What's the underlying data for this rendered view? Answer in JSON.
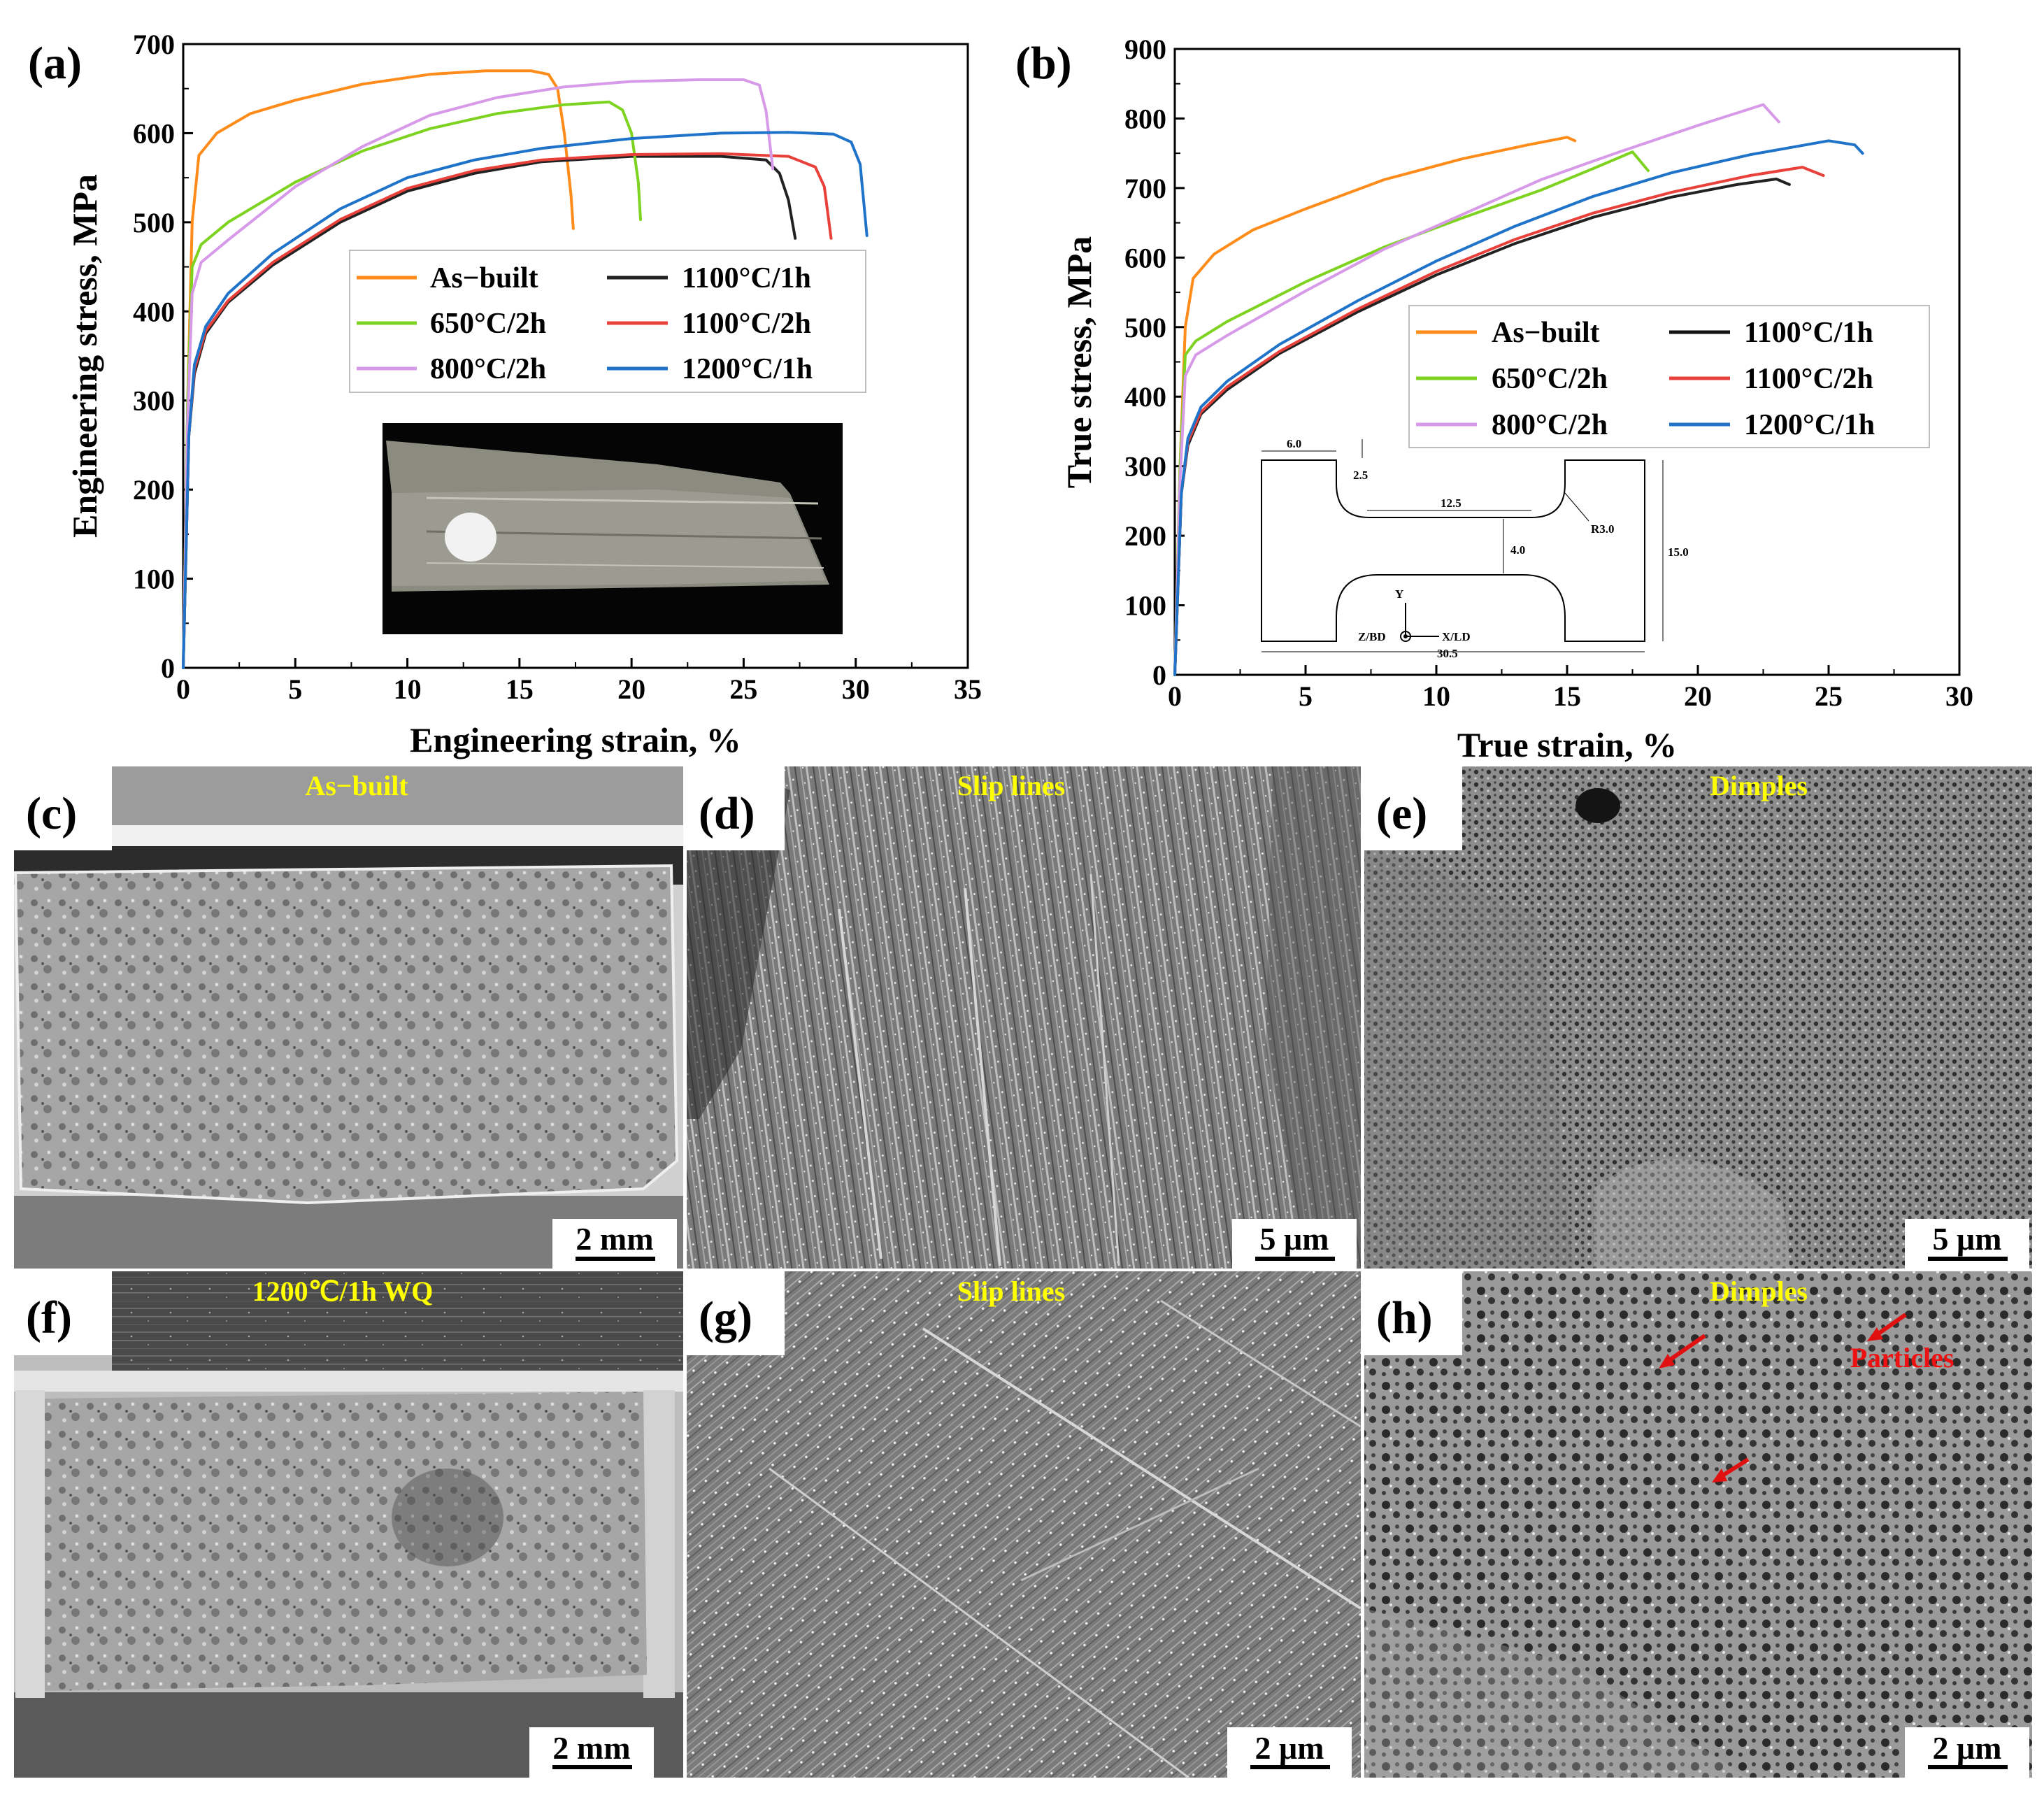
{
  "colors": {
    "as_built": "#ff8c1a",
    "c650_2h": "#7ed321",
    "c800_2h": "#d79ae8",
    "c1100_1h": "#222222",
    "c1100_2h": "#e8413b",
    "c1200_1h": "#1f73c8",
    "annotation_yellow": "#ffff00",
    "arrow_red": "#e11111"
  },
  "chart_data": [
    {
      "panel": "(a)",
      "type": "line",
      "xlabel": "Engineering strain, %",
      "ylabel": "Engineering stress, MPa",
      "xlim": [
        0,
        35
      ],
      "ylim": [
        0,
        700
      ],
      "xticks": [
        0,
        5,
        10,
        15,
        20,
        25,
        30,
        35
      ],
      "yticks": [
        0,
        100,
        200,
        300,
        400,
        500,
        600,
        700
      ],
      "legend": "center-right",
      "series": [
        {
          "name": "As−built",
          "color_key": "as_built",
          "points": [
            [
              0,
              0
            ],
            [
              0.2,
              300
            ],
            [
              0.4,
              500
            ],
            [
              0.7,
              575
            ],
            [
              1.5,
              600
            ],
            [
              3,
              622
            ],
            [
              5,
              637
            ],
            [
              8,
              655
            ],
            [
              11,
              666
            ],
            [
              13.5,
              670
            ],
            [
              15.5,
              670
            ],
            [
              16.3,
              666
            ],
            [
              16.7,
              650
            ],
            [
              17,
              600
            ],
            [
              17.3,
              530
            ],
            [
              17.4,
              493
            ]
          ]
        },
        {
          "name": "1100°C/1h",
          "color_key": "c1100_1h",
          "points": [
            [
              0,
              0
            ],
            [
              0.25,
              260
            ],
            [
              0.5,
              330
            ],
            [
              1,
              375
            ],
            [
              2,
              410
            ],
            [
              4,
              452
            ],
            [
              7,
              500
            ],
            [
              10,
              535
            ],
            [
              13,
              555
            ],
            [
              16,
              568
            ],
            [
              20,
              574
            ],
            [
              24,
              574
            ],
            [
              26,
              570
            ],
            [
              26.6,
              555
            ],
            [
              27,
              525
            ],
            [
              27.3,
              482
            ]
          ]
        },
        {
          "name": "650°C/2h",
          "color_key": "c650_2h",
          "points": [
            [
              0,
              0
            ],
            [
              0.2,
              300
            ],
            [
              0.4,
              450
            ],
            [
              0.8,
              475
            ],
            [
              2,
              500
            ],
            [
              5,
              545
            ],
            [
              8,
              580
            ],
            [
              11,
              605
            ],
            [
              14,
              622
            ],
            [
              17,
              632
            ],
            [
              19,
              635
            ],
            [
              19.6,
              626
            ],
            [
              20,
              600
            ],
            [
              20.3,
              545
            ],
            [
              20.4,
              503
            ]
          ]
        },
        {
          "name": "1100°C/2h",
          "color_key": "c1100_2h",
          "points": [
            [
              0,
              0
            ],
            [
              0.25,
              260
            ],
            [
              0.5,
              335
            ],
            [
              1,
              378
            ],
            [
              2,
              412
            ],
            [
              4,
              455
            ],
            [
              7,
              503
            ],
            [
              10,
              538
            ],
            [
              13,
              558
            ],
            [
              16,
              570
            ],
            [
              20,
              576
            ],
            [
              24,
              577
            ],
            [
              27,
              574
            ],
            [
              28.2,
              562
            ],
            [
              28.6,
              540
            ],
            [
              28.9,
              482
            ]
          ]
        },
        {
          "name": "800°C/2h",
          "color_key": "c800_2h",
          "points": [
            [
              0,
              0
            ],
            [
              0.2,
              280
            ],
            [
              0.4,
              420
            ],
            [
              0.8,
              455
            ],
            [
              2,
              480
            ],
            [
              5,
              540
            ],
            [
              8,
              585
            ],
            [
              11,
              620
            ],
            [
              14,
              640
            ],
            [
              17,
              652
            ],
            [
              20,
              658
            ],
            [
              23,
              660
            ],
            [
              25,
              660
            ],
            [
              25.7,
              654
            ],
            [
              26,
              625
            ],
            [
              26.3,
              560
            ]
          ]
        },
        {
          "name": "1200°C/1h",
          "color_key": "c1200_1h",
          "points": [
            [
              0,
              0
            ],
            [
              0.25,
              260
            ],
            [
              0.5,
              340
            ],
            [
              1,
              383
            ],
            [
              2,
              420
            ],
            [
              4,
              465
            ],
            [
              7,
              515
            ],
            [
              10,
              550
            ],
            [
              13,
              570
            ],
            [
              16,
              583
            ],
            [
              20,
              594
            ],
            [
              24,
              600
            ],
            [
              27,
              601
            ],
            [
              29,
              599
            ],
            [
              29.8,
              590
            ],
            [
              30.2,
              565
            ],
            [
              30.5,
              485
            ]
          ]
        }
      ]
    },
    {
      "panel": "(b)",
      "type": "line",
      "xlabel": "True strain, %",
      "ylabel": "True stress, MPa",
      "xlim": [
        0,
        30
      ],
      "ylim": [
        0,
        900
      ],
      "xticks": [
        0,
        5,
        10,
        15,
        20,
        25,
        30
      ],
      "yticks": [
        0,
        100,
        200,
        300,
        400,
        500,
        600,
        700,
        800,
        900
      ],
      "legend": "center-right",
      "series": [
        {
          "name": "As−built",
          "color_key": "as_built",
          "points": [
            [
              0,
              0
            ],
            [
              0.2,
              300
            ],
            [
              0.4,
              500
            ],
            [
              0.7,
              570
            ],
            [
              1.5,
              605
            ],
            [
              3,
              640
            ],
            [
              5,
              670
            ],
            [
              8,
              712
            ],
            [
              11,
              742
            ],
            [
              13.5,
              762
            ],
            [
              15,
              773
            ],
            [
              15.3,
              768
            ]
          ]
        },
        {
          "name": "1100°C/1h",
          "color_key": "c1100_1h",
          "points": [
            [
              0,
              0
            ],
            [
              0.25,
              260
            ],
            [
              0.5,
              330
            ],
            [
              1,
              375
            ],
            [
              2,
              410
            ],
            [
              4,
              462
            ],
            [
              7,
              522
            ],
            [
              10,
              575
            ],
            [
              13,
              620
            ],
            [
              16,
              658
            ],
            [
              19,
              687
            ],
            [
              21.5,
              705
            ],
            [
              23,
              713
            ],
            [
              23.5,
              705
            ]
          ]
        },
        {
          "name": "650°C/2h",
          "color_key": "c650_2h",
          "points": [
            [
              0,
              0
            ],
            [
              0.2,
              300
            ],
            [
              0.4,
              460
            ],
            [
              0.8,
              480
            ],
            [
              2,
              508
            ],
            [
              5,
              565
            ],
            [
              8,
              615
            ],
            [
              11,
              657
            ],
            [
              14,
              697
            ],
            [
              16,
              728
            ],
            [
              17.5,
              752
            ],
            [
              18.1,
              725
            ]
          ]
        },
        {
          "name": "1100°C/2h",
          "color_key": "c1100_2h",
          "points": [
            [
              0,
              0
            ],
            [
              0.25,
              260
            ],
            [
              0.5,
              335
            ],
            [
              1,
              378
            ],
            [
              2,
              414
            ],
            [
              4,
              465
            ],
            [
              7,
              526
            ],
            [
              10,
              580
            ],
            [
              13,
              626
            ],
            [
              16,
              664
            ],
            [
              19,
              694
            ],
            [
              22,
              718
            ],
            [
              24,
              730
            ],
            [
              24.8,
              718
            ]
          ]
        },
        {
          "name": "800°C/2h",
          "color_key": "c800_2h",
          "points": [
            [
              0,
              0
            ],
            [
              0.2,
              280
            ],
            [
              0.4,
              430
            ],
            [
              0.8,
              460
            ],
            [
              2,
              488
            ],
            [
              5,
              552
            ],
            [
              8,
              612
            ],
            [
              11,
              662
            ],
            [
              14,
              712
            ],
            [
              17,
              752
            ],
            [
              20,
              790
            ],
            [
              22.5,
              820
            ],
            [
              23.1,
              795
            ]
          ]
        },
        {
          "name": "1200°C/1h",
          "color_key": "c1200_1h",
          "points": [
            [
              0,
              0
            ],
            [
              0.25,
              260
            ],
            [
              0.5,
              340
            ],
            [
              1,
              385
            ],
            [
              2,
              422
            ],
            [
              4,
              475
            ],
            [
              7,
              538
            ],
            [
              10,
              595
            ],
            [
              13,
              645
            ],
            [
              16,
              688
            ],
            [
              19,
              722
            ],
            [
              22,
              748
            ],
            [
              25,
              768
            ],
            [
              26,
              762
            ],
            [
              26.3,
              750
            ]
          ]
        }
      ]
    }
  ],
  "legend_labels": [
    "As−built",
    "650°C/2h",
    "800°C/2h",
    "1100°C/1h",
    "1100°C/2h",
    "1200°C/1h"
  ],
  "specimen_drawing": {
    "dims": [
      "6.0",
      "2.5",
      "12.5",
      "R3.0",
      "4.0",
      "15.0",
      "30.5"
    ],
    "axes": [
      "Y",
      "Z/BD",
      "X/LD"
    ]
  },
  "panels": {
    "a": "(a)",
    "b": "(b)",
    "c": "(c)",
    "d": "(d)",
    "e": "(e)",
    "f": "(f)",
    "g": "(g)",
    "h": "(h)"
  },
  "image_titles": {
    "c": "As−built",
    "d": "Slip lines",
    "e": "Dimples",
    "f": "1200℃/1h WQ",
    "g": "Slip lines",
    "h": "Dimples",
    "h_particles": "Particles"
  },
  "scale_bars": {
    "c": "2 mm",
    "d": "5 μm",
    "e": "5 μm",
    "f": "2 mm",
    "g": "2 μm",
    "h": "2 μm"
  }
}
